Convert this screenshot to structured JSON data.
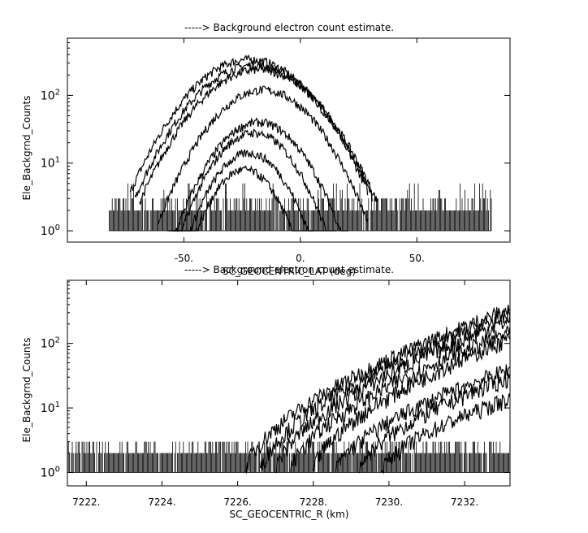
{
  "chart_data": [
    {
      "type": "line",
      "title": "-----> Background electron count estimate.",
      "xlabel": "SC_GEOCENTRIC_LAT (deg)",
      "ylabel": "Ele_Backgrnd_Counts",
      "xlim": [
        -100,
        90
      ],
      "ylim": [
        0.68,
        700
      ],
      "yscale": "log",
      "xticks": [
        {
          "v": -50,
          "label": "-50."
        },
        {
          "v": 0,
          "label": "0."
        },
        {
          "v": 50,
          "label": "50."
        }
      ],
      "yticks": [
        {
          "v": 1,
          "base": "10",
          "exp": "0"
        },
        {
          "v": 10,
          "base": "10",
          "exp": "1"
        },
        {
          "v": 100,
          "base": "10",
          "exp": "2"
        }
      ],
      "noise_floor": {
        "x_range": [
          -82,
          82
        ],
        "levels": [
          1,
          2,
          3,
          4,
          5
        ]
      },
      "series": [
        {
          "x0": -22,
          "sigma": 17,
          "peak": 340
        },
        {
          "x0": -20,
          "sigma": 17,
          "peak": 280
        },
        {
          "x0": -18,
          "sigma": 17,
          "peak": 240
        },
        {
          "x0": -16,
          "sigma": 15,
          "peak": 120
        },
        {
          "x0": -18,
          "sigma": 13,
          "peak": 40
        },
        {
          "x0": -20,
          "sigma": 12,
          "peak": 28
        },
        {
          "x0": -22,
          "sigma": 11,
          "peak": 14
        },
        {
          "x0": -24,
          "sigma": 10,
          "peak": 8
        }
      ]
    },
    {
      "type": "line",
      "title": "-----> Background electron count estimate.",
      "xlabel": "SC_GEOCENTRIC_R (km)",
      "ylabel": "Ele_Backgrnd_Counts",
      "xlim": [
        7221.5,
        7233.2
      ],
      "ylim": [
        0.62,
        950
      ],
      "yscale": "log",
      "xticks": [
        {
          "v": 7222,
          "label": "7222."
        },
        {
          "v": 7224,
          "label": "7224."
        },
        {
          "v": 7226,
          "label": "7226."
        },
        {
          "v": 7228,
          "label": "7228."
        },
        {
          "v": 7230,
          "label": "7230."
        },
        {
          "v": 7232,
          "label": "7232."
        }
      ],
      "yticks": [
        {
          "v": 1,
          "base": "10",
          "exp": "0"
        },
        {
          "v": 10,
          "base": "10",
          "exp": "1"
        },
        {
          "v": 100,
          "base": "10",
          "exp": "2"
        }
      ],
      "noise_floor": {
        "x_range": [
          7221.5,
          7233.2
        ],
        "levels": [
          1,
          2,
          3
        ]
      },
      "series": [
        {
          "x_start": 7226.2,
          "y_end": 340
        },
        {
          "x_start": 7226.6,
          "y_end": 280
        },
        {
          "x_start": 7227.0,
          "y_end": 230
        },
        {
          "x_start": 7227.4,
          "y_end": 150
        },
        {
          "x_start": 7228.0,
          "y_end": 120
        },
        {
          "x_start": 7228.6,
          "y_end": 40
        },
        {
          "x_start": 7229.2,
          "y_end": 30
        },
        {
          "x_start": 7229.8,
          "y_end": 14
        }
      ]
    }
  ]
}
